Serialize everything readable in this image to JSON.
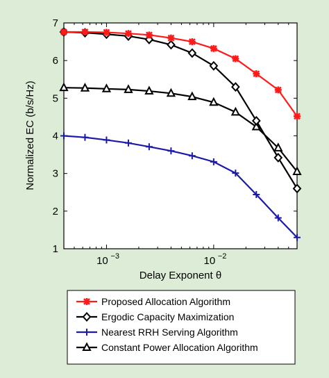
{
  "chart_data": {
    "type": "line",
    "xlabel": "Delay Exponent θ",
    "ylabel": "Normalized EC (b/s/Hz)",
    "x_scale": "log",
    "xlim": [
      0.0004,
      0.06
    ],
    "ylim": [
      1,
      7
    ],
    "x_tick_labels": [
      {
        "value": 0.001,
        "base": "10",
        "exp": "−3"
      },
      {
        "value": 0.01,
        "base": "10",
        "exp": "−2"
      }
    ],
    "y_ticks": [
      1,
      2,
      3,
      4,
      5,
      6,
      7
    ],
    "grid": false,
    "legend_position": "below plot",
    "x": [
      0.0004,
      0.00063,
      0.001,
      0.0016,
      0.0025,
      0.004,
      0.0063,
      0.01,
      0.016,
      0.025,
      0.04,
      0.06
    ],
    "series": [
      {
        "name": "Proposed Allocation Algorithm",
        "color": "#ff1a1a",
        "marker": "star",
        "values": [
          6.76,
          6.76,
          6.75,
          6.72,
          6.68,
          6.6,
          6.5,
          6.32,
          6.05,
          5.65,
          5.22,
          4.52
        ]
      },
      {
        "name": "Ergodic Capacity Maximization",
        "color": "#000000",
        "marker": "diamond",
        "values": [
          6.76,
          6.74,
          6.7,
          6.65,
          6.56,
          6.42,
          6.2,
          5.86,
          5.3,
          4.4,
          3.42,
          2.6
        ]
      },
      {
        "name": "Nearest RRH Serving Algorithm",
        "color": "#1a1aa8",
        "marker": "plus",
        "values": [
          4.0,
          3.96,
          3.89,
          3.81,
          3.71,
          3.6,
          3.47,
          3.31,
          3.01,
          2.44,
          1.82,
          1.3
        ]
      },
      {
        "name": "Constant Power Allocation Algorithm",
        "color": "#000000",
        "marker": "triangle",
        "values": [
          5.28,
          5.27,
          5.25,
          5.23,
          5.19,
          5.13,
          5.04,
          4.89,
          4.63,
          4.24,
          3.68,
          3.05
        ]
      }
    ]
  }
}
